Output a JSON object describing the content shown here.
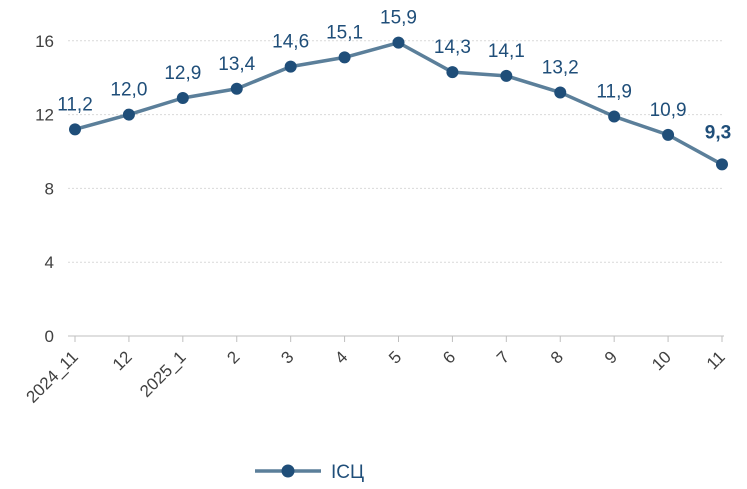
{
  "chart_data": {
    "type": "line",
    "categories": [
      "2024_11",
      "12",
      "2025_1",
      "2",
      "3",
      "4",
      "5",
      "6",
      "7",
      "8",
      "9",
      "10",
      "11"
    ],
    "series": [
      {
        "name": "ІСЦ",
        "values": [
          11.2,
          12.0,
          12.9,
          13.4,
          14.6,
          15.1,
          15.9,
          14.3,
          14.1,
          13.2,
          11.9,
          10.9,
          9.3
        ],
        "labels": [
          "11,2",
          "12,0",
          "12,9",
          "13,4",
          "14,6",
          "15,1",
          "15,9",
          "14,3",
          "14,1",
          "13,2",
          "11,9",
          "10,9",
          "9,3"
        ],
        "color": "#5b7f9a",
        "marker_color": "#1f4e79"
      }
    ],
    "yticks": [
      0,
      4,
      8,
      12,
      16
    ],
    "ylim": [
      0,
      16.8
    ],
    "grid": true,
    "legend_position": "bottom-left",
    "title": "",
    "xlabel": "",
    "ylabel": ""
  },
  "colors": {
    "line": "#5b7f9a",
    "marker": "#1f4e79",
    "label": "#1f4e79",
    "grid": "#d9d9d9"
  }
}
